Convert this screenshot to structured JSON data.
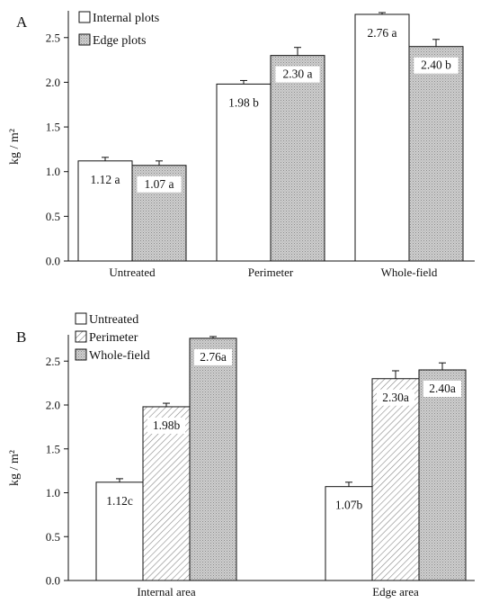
{
  "chart_data": [
    {
      "panel_label": "A",
      "type": "bar",
      "categories": [
        "Untreated",
        "Perimeter",
        "Whole-field"
      ],
      "ylabel": "kg / m²",
      "ylim": [
        0,
        2.8
      ],
      "yticks": [
        0.0,
        0.5,
        1.0,
        1.5,
        2.0,
        2.5
      ],
      "ytick_labels": [
        "0.0",
        "0.5",
        "1.0",
        "1.5",
        "2.0",
        "2.5"
      ],
      "grid": false,
      "legend_position": "top-left",
      "series": [
        {
          "name": "Internal plots",
          "values": [
            1.12,
            1.98,
            2.76
          ],
          "errors": [
            0.04,
            0.04,
            0.02
          ],
          "labels": [
            "1.12 a",
            "1.98 b",
            "2.76 a"
          ],
          "fill": "white"
        },
        {
          "name": "Edge plots",
          "values": [
            1.07,
            2.3,
            2.4
          ],
          "errors": [
            0.05,
            0.09,
            0.08
          ],
          "labels": [
            "1.07 a",
            "2.30 a",
            "2.40 b"
          ],
          "fill": "dotted"
        }
      ]
    },
    {
      "panel_label": "B",
      "type": "bar",
      "categories": [
        "Internal area",
        "Edge area"
      ],
      "ylabel": "kg / m²",
      "ylim": [
        0,
        2.8
      ],
      "yticks": [
        0.0,
        0.5,
        1.0,
        1.5,
        2.0,
        2.5
      ],
      "ytick_labels": [
        "0.0",
        "0.5",
        "1.0",
        "1.5",
        "2.0",
        "2.5"
      ],
      "grid": false,
      "legend_position": "top-left",
      "series": [
        {
          "name": "Untreated",
          "values": [
            1.12,
            1.07
          ],
          "errors": [
            0.04,
            0.05
          ],
          "labels": [
            "1.12c",
            "1.07b"
          ],
          "fill": "white"
        },
        {
          "name": "Perimeter",
          "values": [
            1.98,
            2.3
          ],
          "errors": [
            0.04,
            0.09
          ],
          "labels": [
            "1.98b",
            "2.30a"
          ],
          "fill": "hatched"
        },
        {
          "name": "Whole-field",
          "values": [
            2.76,
            2.4
          ],
          "errors": [
            0.02,
            0.08
          ],
          "labels": [
            "2.76a",
            "2.40a"
          ],
          "fill": "dotted"
        }
      ]
    }
  ],
  "colors": {
    "bar_edge": "#111111",
    "dotted_fill": "#c8c8c8",
    "hatch_stroke": "#777777",
    "label_box": "#ffffff"
  }
}
